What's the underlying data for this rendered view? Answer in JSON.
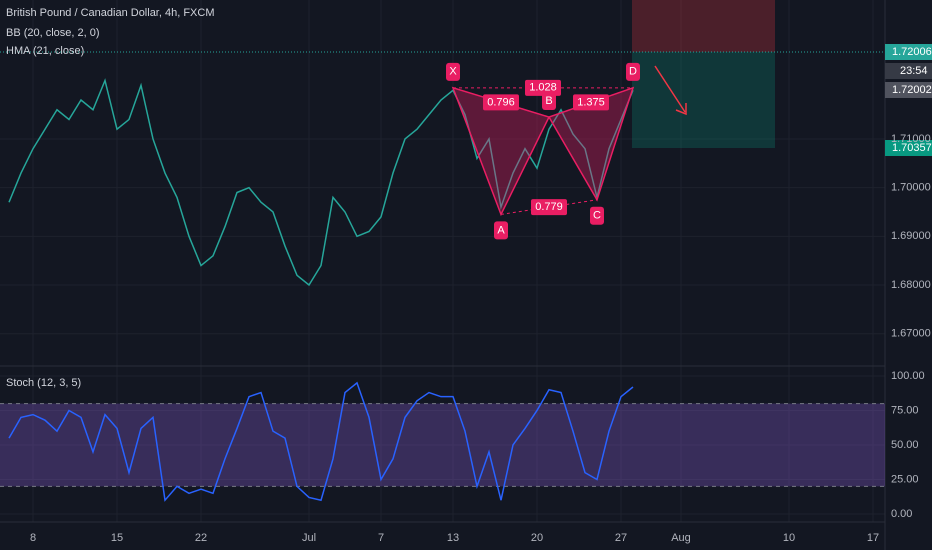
{
  "chart_data": {
    "type": "line",
    "title": "British Pound / Canadian Dollar, 4h, FXCM",
    "indicators": [
      "BB (20, close, 2, 0)",
      "HMA (21, close)"
    ],
    "categories": [
      null,
      null,
      "8",
      null,
      null,
      null,
      null,
      null,
      null,
      "15",
      null,
      null,
      null,
      null,
      null,
      null,
      "22",
      null,
      null,
      null,
      null,
      null,
      null,
      null,
      null,
      "Jul",
      null,
      null,
      null,
      null,
      null,
      "7",
      null,
      null,
      null,
      null,
      null,
      "13",
      null,
      null,
      null,
      null,
      null,
      null,
      "20",
      null,
      null,
      null,
      null,
      null,
      null,
      "27",
      null,
      null,
      null,
      null,
      "Aug",
      null,
      null,
      null,
      null,
      null,
      null,
      null,
      null,
      "10",
      null,
      null,
      null,
      null,
      null,
      null,
      "17",
      null
    ],
    "series": [
      {
        "color": "#26a69a",
        "values": [
          1.697,
          1.703,
          1.708,
          1.712,
          1.716,
          1.714,
          1.718,
          1.716,
          1.722,
          1.712,
          1.714,
          1.721,
          1.71,
          1.703,
          1.698,
          1.69,
          1.684,
          1.686,
          1.692,
          1.699,
          1.7,
          1.697,
          1.695,
          1.688,
          1.682,
          1.68,
          1.684,
          1.698,
          1.695,
          1.69,
          1.691,
          1.694,
          1.703,
          1.71,
          1.712,
          1.715,
          1.718,
          1.72,
          1.715,
          1.706,
          1.71,
          1.696,
          1.703,
          1.708,
          1.704,
          1.712,
          1.716,
          1.711,
          1.708,
          1.698,
          1.708,
          1.714,
          1.72,
          null,
          null,
          null,
          null,
          null,
          null,
          null,
          null,
          null,
          null,
          null,
          null,
          null,
          null,
          null,
          null,
          null,
          null,
          null,
          null,
          null
        ]
      }
    ],
    "ylim": [
      1.66357,
      1.73854
    ],
    "yticks": [
      {
        "value": 1.67,
        "label": "1.67000"
      },
      {
        "value": 1.68,
        "label": "1.68000"
      },
      {
        "value": 1.69,
        "label": "1.69000"
      },
      {
        "value": 1.7,
        "label": "1.70000"
      },
      {
        "value": 1.71,
        "label": "1.71000"
      }
    ],
    "price_labels": [
      "1.72006",
      "23:54",
      "1.72002",
      "1.70357"
    ],
    "pattern": {
      "labels": [
        "X",
        "A",
        "B",
        "C",
        "D"
      ],
      "at": [
        37,
        41,
        45,
        49,
        52
      ],
      "values": [
        1.7205,
        1.6945,
        1.7145,
        1.6975,
        1.7205
      ],
      "ratios": [
        "0.796",
        "1.028",
        "1.375",
        "0.779"
      ]
    },
    "stoch": {
      "title": "Stoch (12, 3, 5)",
      "color": "#2962ff",
      "values": [
        55,
        70,
        72,
        68,
        60,
        75,
        70,
        45,
        72,
        62,
        30,
        62,
        70,
        10,
        20,
        15,
        18,
        15,
        40,
        62,
        85,
        88,
        60,
        55,
        20,
        12,
        10,
        40,
        88,
        95,
        70,
        25,
        40,
        70,
        82,
        88,
        85,
        85,
        60,
        20,
        45,
        10,
        50,
        62,
        75,
        90,
        88,
        60,
        30,
        25,
        60,
        85,
        92,
        null,
        null,
        null,
        null,
        null,
        null,
        null,
        null,
        null,
        null,
        null,
        null,
        null,
        null,
        null,
        null,
        null,
        null,
        null,
        null,
        null
      ],
      "ylim": [
        -5.8,
        106.5
      ],
      "yticks": [
        {
          "value": 0,
          "label": "0.00"
        },
        {
          "value": 25,
          "label": "25.00"
        },
        {
          "value": 50,
          "label": "50.00"
        },
        {
          "value": 75,
          "label": "75.00"
        },
        {
          "value": 100,
          "label": "100.00"
        }
      ],
      "bands": [
        20,
        80
      ]
    }
  }
}
